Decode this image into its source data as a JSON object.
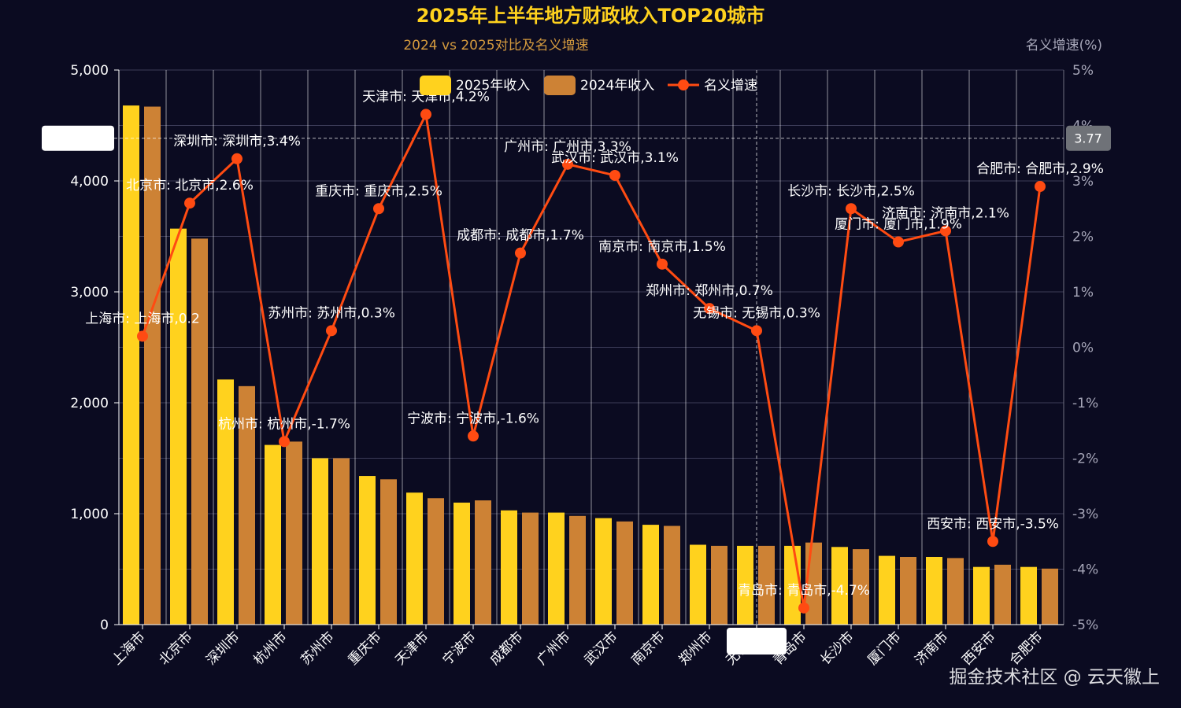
{
  "colors": {
    "background": "#0b0b21",
    "bar2025": "#ffd21e",
    "bar2024": "#cd8235",
    "line": "#ff4b12",
    "grid": "#3c3c58",
    "title": "#ffd21e",
    "subtitle": "#d49a3e"
  },
  "chart_data": {
    "type": "bar",
    "title": "2025年上半年地方财政收入TOP20城市",
    "subtitle": "2024 vs 2025对比及名义增速",
    "ylabel_right": "名义增速(%)",
    "ylim_left": [
      0,
      5000
    ],
    "ylim_right": [
      -5,
      5
    ],
    "left_ticks": [
      "0",
      "1,000",
      "2,000",
      "3,000",
      "4,000",
      "5,000"
    ],
    "right_ticks": [
      "-5%",
      "-4%",
      "-3%",
      "-2%",
      "-1%",
      "0%",
      "1%",
      "2%",
      "3%",
      "4%",
      "5%"
    ],
    "categories": [
      "上海市",
      "北京市",
      "深圳市",
      "杭州市",
      "苏州市",
      "重庆市",
      "天津市",
      "宁波市",
      "成都市",
      "广州市",
      "武汉市",
      "南京市",
      "郑州市",
      "无锡市",
      "青岛市",
      "长沙市",
      "厦门市",
      "济南市",
      "西安市",
      "合肥市"
    ],
    "series": [
      {
        "name": "2025年收入",
        "type": "bar",
        "axis": "left",
        "values": [
          4680,
          3570,
          2210,
          1620,
          1500,
          1340,
          1190,
          1100,
          1030,
          1010,
          960,
          900,
          720,
          710,
          710,
          700,
          620,
          610,
          520,
          520
        ]
      },
      {
        "name": "2024年收入",
        "type": "bar",
        "axis": "left",
        "values": [
          4670,
          3480,
          2150,
          1650,
          1500,
          1310,
          1140,
          1120,
          1010,
          980,
          930,
          890,
          710,
          710,
          740,
          680,
          610,
          600,
          540,
          505
        ]
      },
      {
        "name": "名义增速",
        "type": "line",
        "axis": "right",
        "values": [
          0.2,
          2.6,
          3.4,
          -1.7,
          0.3,
          2.5,
          4.2,
          -1.6,
          1.7,
          3.3,
          3.1,
          1.5,
          0.7,
          0.3,
          -4.7,
          2.5,
          1.9,
          2.1,
          -3.5,
          2.9
        ]
      }
    ],
    "point_labels": [
      "上海市: 上海市,0.2",
      "北京市: 北京市,2.6%",
      "深圳市: 深圳市,3.4%",
      "杭州市: 杭州市,-1.7%",
      "苏州市: 苏州市,0.3%",
      "重庆市: 重庆市,2.5%",
      "天津市: 天津市,4.2%",
      "宁波市: 宁波市,-1.6%",
      "成都市: 成都市,1.7%",
      "广州市: 广州市,3.3%",
      "武汉市: 武汉市,3.1%",
      "南京市: 南京市,1.5%",
      "郑州市: 郑州市,0.7%",
      "无锡市: 无锡市,0.3%",
      "青岛市: 青岛市,-4.7%",
      "长沙市: 长沙市,2.5%",
      "厦门市: 厦门市,1.9%",
      "济南市: 济南市,2.1%",
      "西安市: 西安市,-3.5%",
      "合肥市: 合肥市,2.9%"
    ],
    "legend": [
      "2025年收入",
      "2024年收入",
      "名义增速"
    ],
    "legend_position": "top-center",
    "crosshair": {
      "category_index": 13,
      "right_value": 3.77,
      "right_value_label": "3.77"
    }
  },
  "watermark": "掘金技术社区 @ 云天徽上"
}
